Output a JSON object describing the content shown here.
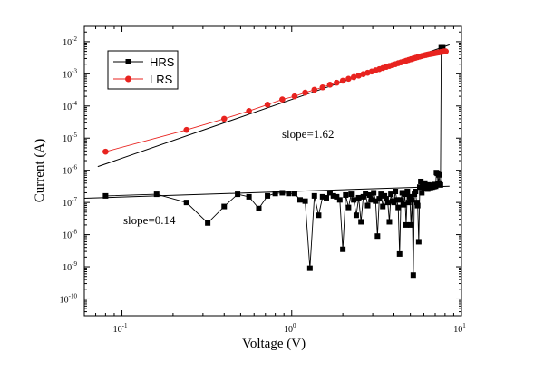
{
  "chart_data": {
    "type": "scatter",
    "xlabel": "Voltage (V)",
    "ylabel": "Current (A)",
    "x_scale": "log",
    "y_scale": "log",
    "xlim": [
      0.06,
      10
    ],
    "ylim": [
      3e-11,
      0.03
    ],
    "x_ticks": [
      {
        "value": 0.1,
        "base": "10",
        "exp": "-1"
      },
      {
        "value": 1,
        "base": "10",
        "exp": "0"
      },
      {
        "value": 10,
        "base": "10",
        "exp": "1"
      }
    ],
    "y_ticks": [
      {
        "value": 1e-10,
        "base": "10",
        "exp": "-10"
      },
      {
        "value": 1e-09,
        "base": "10",
        "exp": "-9"
      },
      {
        "value": 1e-08,
        "base": "10",
        "exp": "-8"
      },
      {
        "value": 1e-07,
        "base": "10",
        "exp": "-7"
      },
      {
        "value": 1e-06,
        "base": "10",
        "exp": "-6"
      },
      {
        "value": 1e-05,
        "base": "10",
        "exp": "-5"
      },
      {
        "value": 0.0001,
        "base": "10",
        "exp": "-4"
      },
      {
        "value": 0.001,
        "base": "10",
        "exp": "-3"
      },
      {
        "value": 0.01,
        "base": "10",
        "exp": "-2"
      }
    ],
    "grid": false,
    "legend_position": "top-left",
    "series": [
      {
        "name": "HRS",
        "color": "#000000",
        "marker": "square",
        "points": [
          [
            0.08,
            1.6e-07
          ],
          [
            0.16,
            1.8e-07
          ],
          [
            0.24,
            1e-07
          ],
          [
            0.32,
            2.3e-08
          ],
          [
            0.4,
            7.5e-08
          ],
          [
            0.48,
            1.8e-07
          ],
          [
            0.56,
            1.5e-07
          ],
          [
            0.64,
            6.5e-08
          ],
          [
            0.72,
            1.6e-07
          ],
          [
            0.8,
            1.9e-07
          ],
          [
            0.88,
            2e-07
          ],
          [
            0.96,
            1.9e-07
          ],
          [
            1.04,
            1.9e-07
          ],
          [
            1.12,
            1.2e-07
          ],
          [
            1.2,
            1.1e-07
          ],
          [
            1.28,
            9e-10
          ],
          [
            1.36,
            1.6e-07
          ],
          [
            1.44,
            4e-08
          ],
          [
            1.52,
            1.5e-07
          ],
          [
            1.6,
            1.4e-07
          ],
          [
            1.68,
            2e-07
          ],
          [
            1.76,
            1.6e-07
          ],
          [
            1.84,
            1.5e-07
          ],
          [
            1.92,
            1.2e-07
          ],
          [
            2.0,
            3.5e-09
          ],
          [
            2.08,
            1.7e-07
          ],
          [
            2.16,
            7e-08
          ],
          [
            2.24,
            1.8e-07
          ],
          [
            2.32,
            1.2e-07
          ],
          [
            2.4,
            4e-08
          ],
          [
            2.48,
            1.4e-07
          ],
          [
            2.56,
            2.5e-08
          ],
          [
            2.64,
            1.5e-07
          ],
          [
            2.72,
            1.9e-07
          ],
          [
            2.8,
            8e-08
          ],
          [
            2.88,
            1.7e-07
          ],
          [
            2.96,
            1.2e-07
          ],
          [
            3.04,
            2e-07
          ],
          [
            3.12,
            1.1e-07
          ],
          [
            3.2,
            9e-09
          ],
          [
            3.28,
            1.3e-07
          ],
          [
            3.36,
            1.8e-07
          ],
          [
            3.44,
            7.5e-08
          ],
          [
            3.52,
            1.6e-07
          ],
          [
            3.6,
            1.3e-07
          ],
          [
            3.68,
            1e-07
          ],
          [
            3.76,
            2.5e-08
          ],
          [
            3.84,
            1.8e-07
          ],
          [
            3.92,
            1.1e-07
          ],
          [
            4.0,
            1e-07
          ],
          [
            4.08,
            2.2e-07
          ],
          [
            4.16,
            1.2e-07
          ],
          [
            4.24,
            7e-08
          ],
          [
            4.32,
            2.5e-09
          ],
          [
            4.4,
            1.2e-07
          ],
          [
            4.48,
            2e-07
          ],
          [
            4.56,
            8.5e-08
          ],
          [
            4.64,
            1.8e-07
          ],
          [
            4.72,
            2e-08
          ],
          [
            4.8,
            2.2e-07
          ],
          [
            4.88,
            1e-07
          ],
          [
            4.96,
            1.5e-07
          ],
          [
            5.04,
            2e-08
          ],
          [
            5.12,
            1.2e-07
          ],
          [
            5.2,
            5.5e-10
          ],
          [
            5.28,
            1.8e-07
          ],
          [
            5.36,
            2.2e-07
          ],
          [
            5.44,
            1e-07
          ],
          [
            5.52,
            8e-08
          ],
          [
            5.6,
            6e-09
          ],
          [
            5.68,
            3e-07
          ],
          [
            5.76,
            4.5e-07
          ],
          [
            5.84,
            2e-07
          ],
          [
            5.92,
            3.3e-07
          ],
          [
            6.0,
            2.7e-07
          ],
          [
            6.08,
            4e-07
          ],
          [
            6.16,
            3e-07
          ],
          [
            6.24,
            3.2e-07
          ],
          [
            6.32,
            2.6e-07
          ],
          [
            6.4,
            3.5e-07
          ],
          [
            6.48,
            3e-07
          ],
          [
            6.56,
            2.9e-07
          ],
          [
            6.64,
            3.4e-07
          ],
          [
            6.72,
            3e-07
          ],
          [
            6.8,
            3.3e-07
          ],
          [
            6.88,
            3.1e-07
          ],
          [
            6.96,
            3.6e-07
          ],
          [
            7.04,
            3.2e-07
          ],
          [
            7.12,
            8.5e-07
          ],
          [
            7.2,
            8e-07
          ],
          [
            7.28,
            3.8e-07
          ],
          [
            7.36,
            7.2e-07
          ],
          [
            7.44,
            4e-07
          ],
          [
            7.52,
            3.5e-07
          ],
          [
            7.6,
            0.0065
          ],
          [
            7.68,
            0.006
          ],
          [
            7.76,
            0.0065
          ]
        ]
      },
      {
        "name": "LRS",
        "color": "#e8231f",
        "marker": "circle",
        "points": [
          [
            0.08,
            3.8e-06
          ],
          [
            0.24,
            1.8e-05
          ],
          [
            0.4,
            4e-05
          ],
          [
            0.56,
            7e-05
          ],
          [
            0.72,
            0.00011
          ],
          [
            0.88,
            0.00016
          ],
          [
            1.04,
            0.0002
          ],
          [
            1.2,
            0.00026
          ],
          [
            1.36,
            0.00032
          ],
          [
            1.52,
            0.00038
          ],
          [
            1.68,
            0.00046
          ],
          [
            1.84,
            0.00053
          ],
          [
            2.0,
            0.00061
          ],
          [
            2.16,
            0.0007
          ],
          [
            2.32,
            0.00079
          ],
          [
            2.48,
            0.00088
          ],
          [
            2.64,
            0.00098
          ],
          [
            2.8,
            0.00108
          ],
          [
            2.96,
            0.00118
          ],
          [
            3.12,
            0.00129
          ],
          [
            3.28,
            0.0014
          ],
          [
            3.44,
            0.00152
          ],
          [
            3.6,
            0.00164
          ],
          [
            3.76,
            0.00176
          ],
          [
            3.92,
            0.00188
          ],
          [
            4.08,
            0.002
          ],
          [
            4.24,
            0.00215
          ],
          [
            4.4,
            0.00228
          ],
          [
            4.56,
            0.00242
          ],
          [
            4.72,
            0.00256
          ],
          [
            4.88,
            0.0027
          ],
          [
            5.04,
            0.00285
          ],
          [
            5.2,
            0.003
          ],
          [
            5.36,
            0.00315
          ],
          [
            5.52,
            0.0033
          ],
          [
            5.68,
            0.00345
          ],
          [
            5.84,
            0.0036
          ],
          [
            6.0,
            0.00375
          ],
          [
            6.16,
            0.00385
          ],
          [
            6.32,
            0.004
          ],
          [
            6.48,
            0.0041
          ],
          [
            6.64,
            0.0042
          ],
          [
            6.8,
            0.0043
          ],
          [
            6.96,
            0.0044
          ],
          [
            7.12,
            0.0045
          ],
          [
            7.28,
            0.0046
          ],
          [
            7.44,
            0.0047
          ],
          [
            7.6,
            0.0048
          ],
          [
            7.76,
            0.0049
          ],
          [
            7.92,
            0.005
          ],
          [
            8.08,
            0.005
          ]
        ]
      }
    ],
    "fit_lines": [
      {
        "label": "slope=1.62",
        "from": [
          0.072,
          1.3e-06
        ],
        "to": [
          8.5,
          0.008
        ]
      },
      {
        "label": "slope=0.14",
        "from": [
          0.06,
          1.35e-07
        ],
        "to": [
          8.5,
          3.2e-07
        ]
      }
    ]
  }
}
